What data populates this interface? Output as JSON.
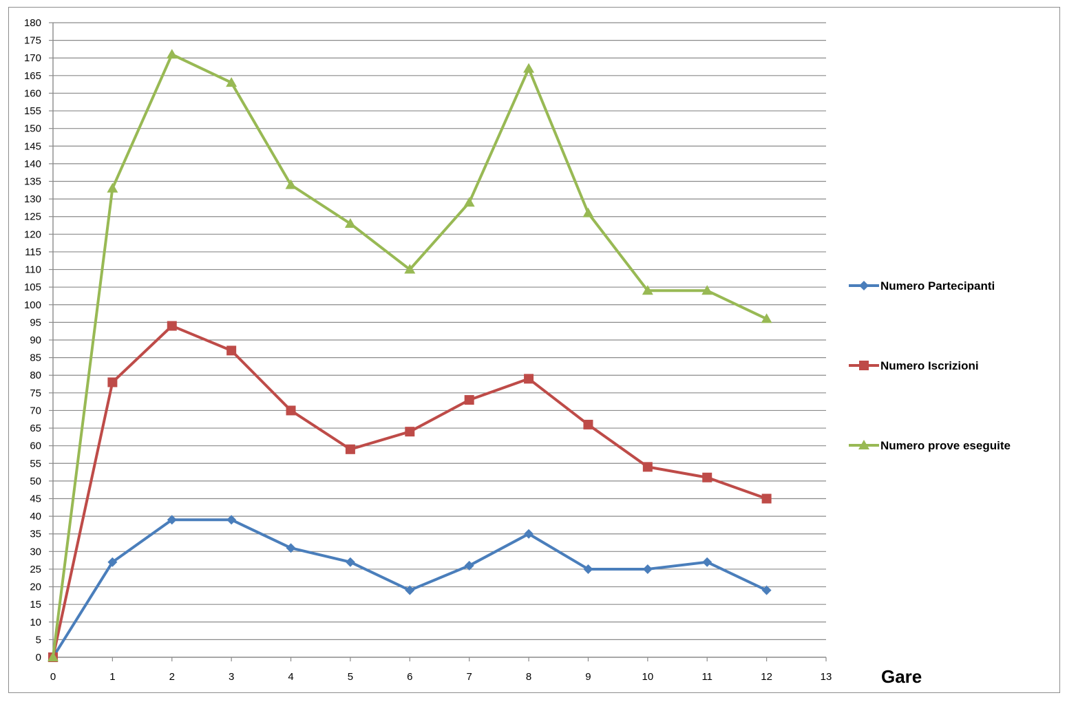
{
  "chart_data": {
    "type": "line",
    "title": "",
    "xlabel": "Gare",
    "ylabel": "",
    "x": [
      0,
      1,
      2,
      3,
      4,
      5,
      6,
      7,
      8,
      9,
      10,
      11,
      12
    ],
    "xlim": [
      0,
      13
    ],
    "ylim": [
      0,
      180
    ],
    "xticks": [
      0,
      1,
      2,
      3,
      4,
      5,
      6,
      7,
      8,
      9,
      10,
      11,
      12,
      13
    ],
    "yticks": [
      0,
      5,
      10,
      15,
      20,
      25,
      30,
      35,
      40,
      45,
      50,
      55,
      60,
      65,
      70,
      75,
      80,
      85,
      90,
      95,
      100,
      105,
      110,
      115,
      120,
      125,
      130,
      135,
      140,
      145,
      150,
      155,
      160,
      165,
      170,
      175,
      180
    ],
    "grid": true,
    "legend_position": "right",
    "series": [
      {
        "name": "Numero Partecipanti",
        "color": "#4a7ebb",
        "marker": "diamond",
        "values": [
          0,
          27,
          39,
          39,
          31,
          27,
          19,
          26,
          35,
          25,
          25,
          27,
          19
        ]
      },
      {
        "name": "Numero Iscrizioni",
        "color": "#be4b48",
        "marker": "square",
        "values": [
          0,
          78,
          94,
          87,
          70,
          59,
          64,
          73,
          79,
          66,
          54,
          51,
          45
        ]
      },
      {
        "name": "Numero prove eseguite",
        "color": "#98b954",
        "marker": "triangle",
        "values": [
          0,
          133,
          171,
          163,
          134,
          123,
          110,
          129,
          167,
          126,
          104,
          104,
          96
        ]
      }
    ]
  }
}
